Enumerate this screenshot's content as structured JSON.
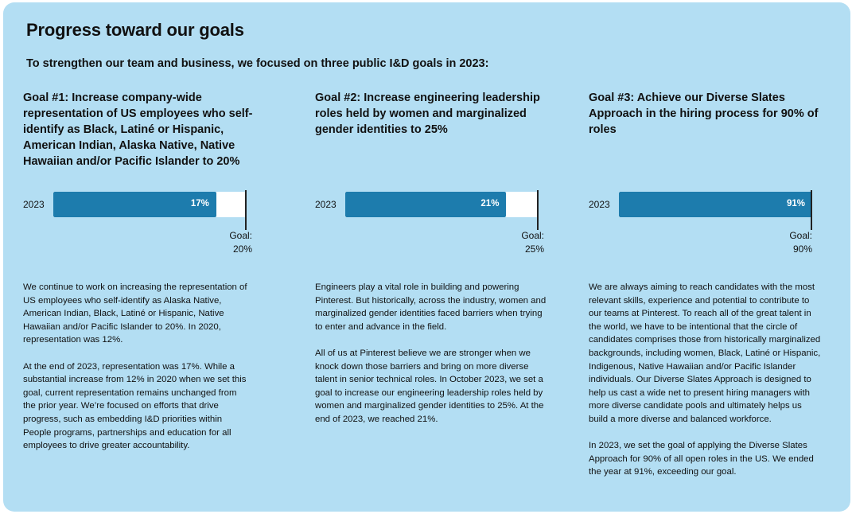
{
  "page": {
    "title": "Progress toward our goals",
    "intro": "To strengthen our team and business, we focused on three public I&D goals in 2023:"
  },
  "goals": [
    {
      "heading": "Goal #1: Increase company-wide representation of US employees who self-identify as Black, Latiné or Hispanic, American Indian, Alaska Native, Native Hawaiian and/or Pacific Islander to 20%",
      "year": "2023",
      "value_label": "17%",
      "value_pct": 17,
      "goal_pct": 20,
      "goal_label": "Goal:",
      "goal_value": "20%",
      "paragraphs": [
        "We continue to work on increasing the representation of US employees who self-identify as Alaska Native, American Indian, Black, Latiné or Hispanic, Native Hawaiian and/or Pacific Islander to 20%. In 2020, representation was 12%.",
        "At the end of 2023, representation was 17%. While a substantial increase from 12% in 2020 when we set this goal, current representation remains unchanged from the prior year. We’re focused on efforts that drive progress, such as embedding I&D priorities within People programs, partnerships and education for all employees to drive greater accountability."
      ]
    },
    {
      "heading": "Goal #2: Increase engineering leadership roles held by women and marginalized gender identities to 25%",
      "year": "2023",
      "value_label": "21%",
      "value_pct": 21,
      "goal_pct": 25,
      "goal_label": "Goal:",
      "goal_value": "25%",
      "paragraphs": [
        "Engineers play a vital role in building and powering Pinterest. But historically, across the industry, women and marginalized gender identities faced barriers when trying to enter and advance in the field.",
        "All of us at Pinterest believe we are stronger when we knock down those barriers and bring on more diverse talent in senior technical roles. In October 2023, we set a goal to increase our engineering leadership roles held by women and marginalized gender identities to 25%. At the end of 2023, we reached 21%."
      ]
    },
    {
      "heading": "Goal #3: Achieve our Diverse Slates Approach in the hiring process for 90% of roles",
      "year": "2023",
      "value_label": "91%",
      "value_pct": 91,
      "goal_pct": 90,
      "goal_label": "Goal:",
      "goal_value": "90%",
      "paragraphs": [
        "We are always aiming to reach candidates with the most relevant skills, experience and potential to contribute to our teams at Pinterest. To reach all of the great talent in the world, we have to be intentional that the circle of candidates comprises those from historically marginalized backgrounds, including women, Black, Latiné or Hispanic, Indigenous, Native Hawaiian and/or Pacific Islander individuals. Our Diverse Slates Approach is designed to help us cast a wide net to present hiring managers with more diverse candidate pools and ultimately helps us build a more diverse and balanced workforce.",
        "In 2023, we set the goal of applying the Diverse Slates Approach for 90% of all open roles in the US. We ended the year at 91%, exceeding our goal."
      ]
    }
  ],
  "colors": {
    "panel": "#b3def3",
    "bar_fill": "#1d7cad",
    "bar_track": "#ffffff",
    "goal_marker": "#222222"
  }
}
